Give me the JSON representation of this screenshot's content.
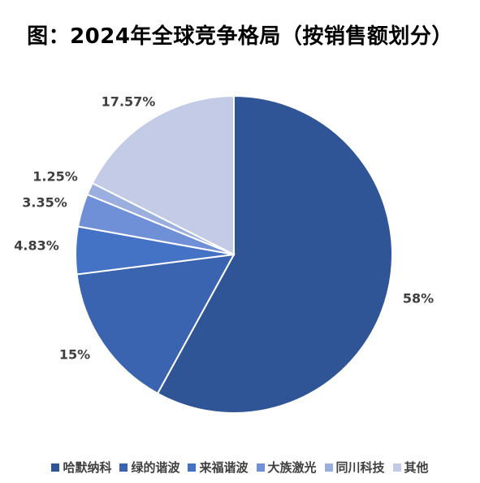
{
  "chart_data": {
    "type": "pie",
    "title": "图：2024年全球竞争格局（按销售额划分）",
    "categories": [
      "哈默纳科",
      "绿的谐波",
      "来福谐波",
      "大族激光",
      "同川科技",
      "其他"
    ],
    "values": [
      58,
      15,
      4.83,
      3.35,
      1.25,
      17.57
    ],
    "labels": [
      "58%",
      "15%",
      "4.83%",
      "3.35%",
      "1.25%",
      "17.57%"
    ],
    "colors": [
      "#2F5597",
      "#3A63B0",
      "#4472C4",
      "#6F8FD6",
      "#9AAEE0",
      "#C3CBE7"
    ],
    "legend_position": "bottom"
  }
}
